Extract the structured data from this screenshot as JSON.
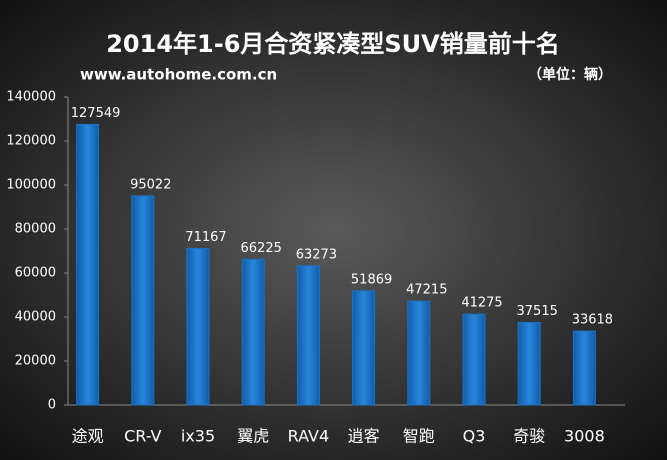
{
  "chart_data": {
    "type": "bar",
    "title": "2014年1-6月合资紧凑型SUV销量前十名",
    "subtitle": "www.autohome.com.cn",
    "unit": "（单位：辆）",
    "categories": [
      "途观",
      "CR-V",
      "ix35",
      "翼虎",
      "RAV4",
      "逍客",
      "智跑",
      "Q3",
      "奇骏",
      "3008"
    ],
    "values": [
      127549,
      95022,
      71167,
      66225,
      63273,
      51869,
      47215,
      41275,
      37515,
      33618
    ],
    "color": "#1a72c6",
    "ylim": [
      0,
      140000
    ],
    "yticks": [
      0,
      20000,
      40000,
      60000,
      80000,
      100000,
      120000,
      140000
    ]
  }
}
